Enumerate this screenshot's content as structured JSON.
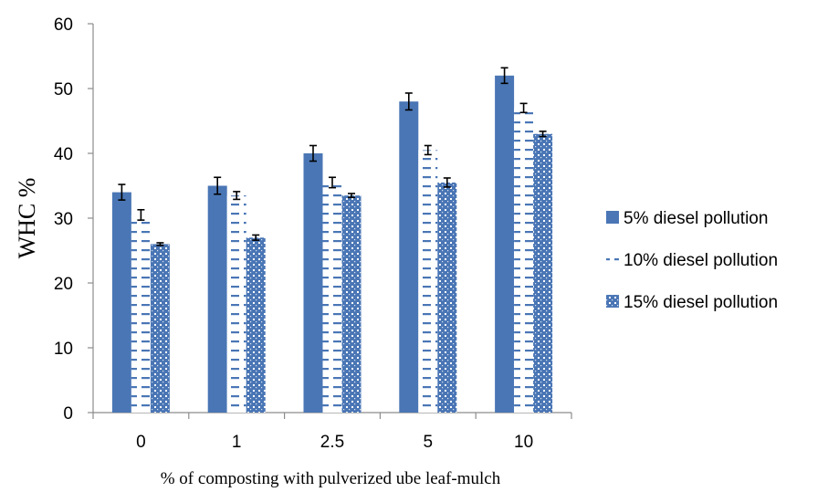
{
  "chart_data": {
    "type": "bar",
    "title": "",
    "xlabel": "% of composting with pulverized ube leaf-mulch",
    "ylabel": "WHC %",
    "ylim": [
      0,
      60
    ],
    "yticks": [
      "0",
      "10",
      "20",
      "30",
      "40",
      "50",
      "60"
    ],
    "categories": [
      "0",
      "1",
      "2.5",
      "5",
      "10"
    ],
    "grid": false,
    "legend_position": "right",
    "series": [
      {
        "name": "5% diesel pollution",
        "color": "#4a76b5",
        "pattern": "solid",
        "values": [
          34,
          35,
          40,
          48,
          52
        ],
        "errors": [
          1.2,
          1.3,
          1.2,
          1.3,
          1.2
        ]
      },
      {
        "name": "10% diesel pollution",
        "color": "#4a76b5",
        "pattern": "dashed-horizontal",
        "values": [
          30.5,
          33.5,
          35.5,
          40.5,
          47
        ],
        "errors": [
          0.8,
          0.6,
          0.8,
          0.7,
          0.7
        ]
      },
      {
        "name": "15% diesel pollution",
        "color": "#4a76b5",
        "pattern": "dotted-grid",
        "values": [
          26,
          27,
          33.5,
          35.5,
          43
        ],
        "errors": [
          0.2,
          0.4,
          0.3,
          0.7,
          0.4
        ]
      }
    ]
  }
}
